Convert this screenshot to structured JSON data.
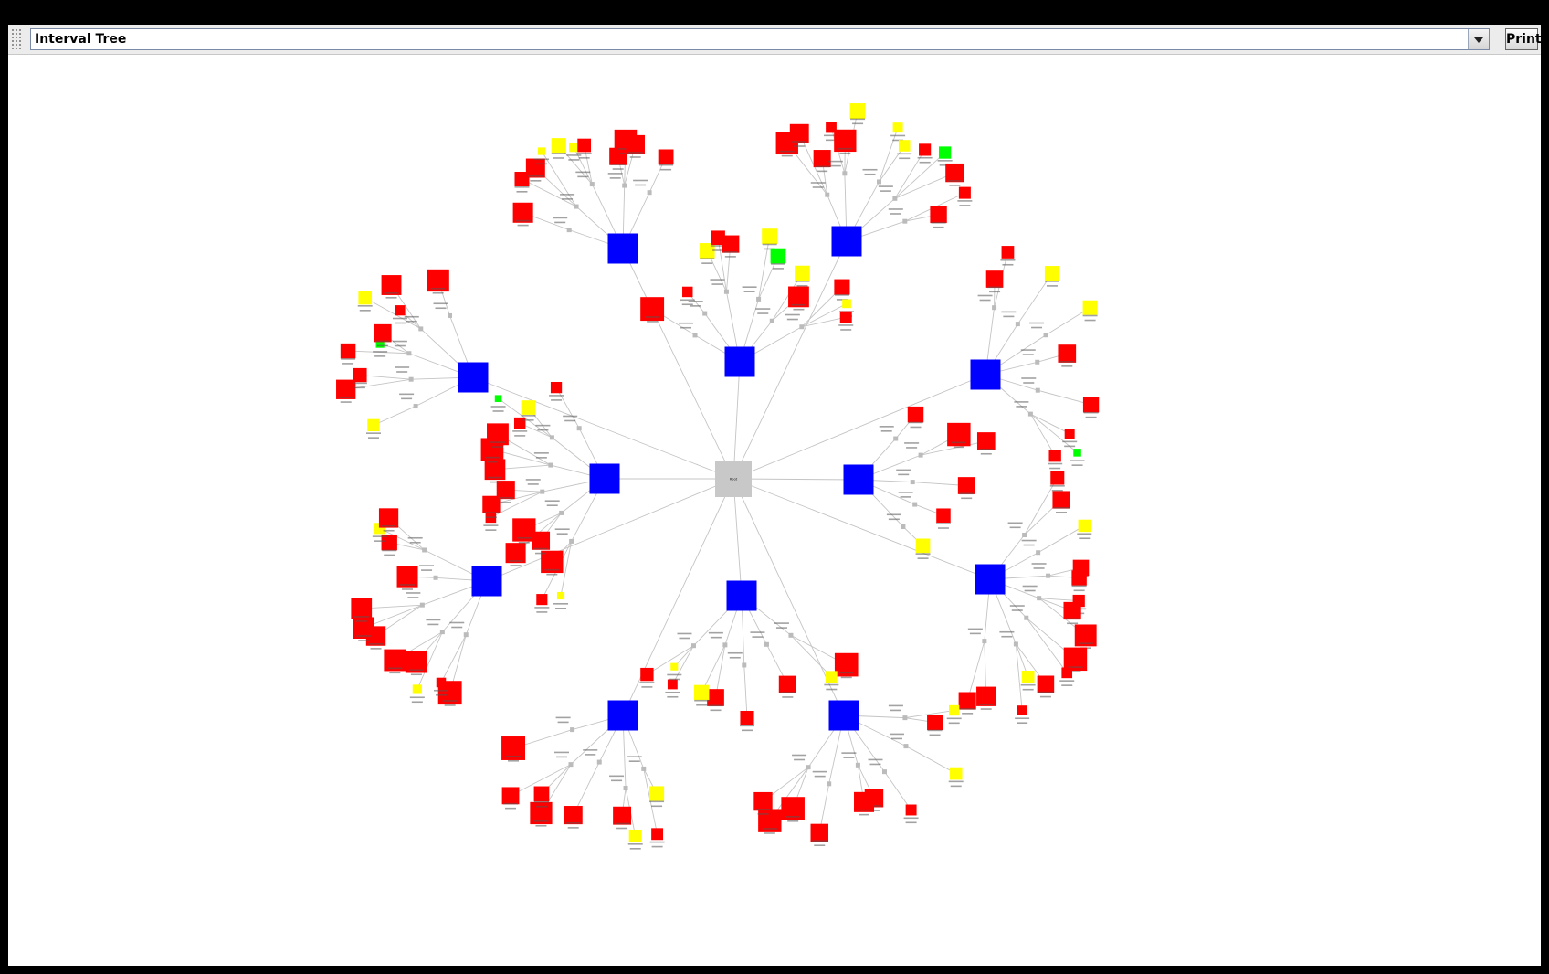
{
  "window": {
    "selector_value": "Interval Tree",
    "print_label": "Print"
  },
  "tree": {
    "root_label": "Root",
    "node_colors": {
      "root": "#c8c8c8",
      "interval": "#0000ff",
      "leaf_red": "#ff0000",
      "leaf_yellow": "#ffff00",
      "leaf_green": "#00ff00",
      "junction": "#bbbbbb",
      "edge": "#c4c4c4"
    }
  }
}
